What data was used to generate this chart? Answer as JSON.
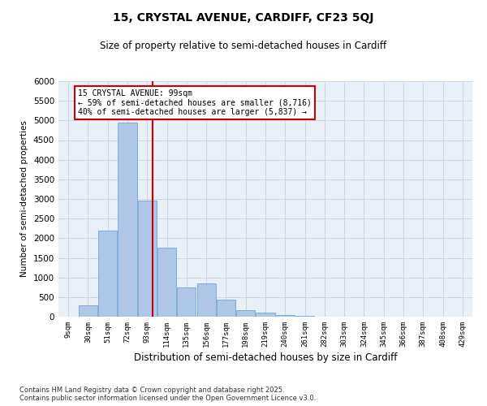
{
  "title1": "15, CRYSTAL AVENUE, CARDIFF, CF23 5QJ",
  "title2": "Size of property relative to semi-detached houses in Cardiff",
  "xlabel": "Distribution of semi-detached houses by size in Cardiff",
  "ylabel": "Number of semi-detached properties",
  "footer1": "Contains HM Land Registry data © Crown copyright and database right 2025.",
  "footer2": "Contains public sector information licensed under the Open Government Licence v3.0.",
  "bins": [
    "9sqm",
    "30sqm",
    "51sqm",
    "72sqm",
    "93sqm",
    "114sqm",
    "135sqm",
    "156sqm",
    "177sqm",
    "198sqm",
    "219sqm",
    "240sqm",
    "261sqm",
    "282sqm",
    "303sqm",
    "324sqm",
    "345sqm",
    "366sqm",
    "387sqm",
    "408sqm",
    "429sqm"
  ],
  "values": [
    0,
    300,
    2200,
    4950,
    2950,
    1750,
    750,
    850,
    430,
    175,
    100,
    50,
    30,
    0,
    0,
    0,
    0,
    0,
    0,
    0
  ],
  "bar_color": "#aec6e8",
  "bar_edge_color": "#5b9bd5",
  "grid_color": "#c8d8e8",
  "bg_color": "#eaf0f8",
  "property_line_color": "#cc0000",
  "annotation_text": "15 CRYSTAL AVENUE: 99sqm\n← 59% of semi-detached houses are smaller (8,716)\n40% of semi-detached houses are larger (5,837) →",
  "annotation_box_color": "#cc0000",
  "ylim": [
    0,
    6000
  ],
  "yticks": [
    0,
    500,
    1000,
    1500,
    2000,
    2500,
    3000,
    3500,
    4000,
    4500,
    5000,
    5500,
    6000
  ]
}
